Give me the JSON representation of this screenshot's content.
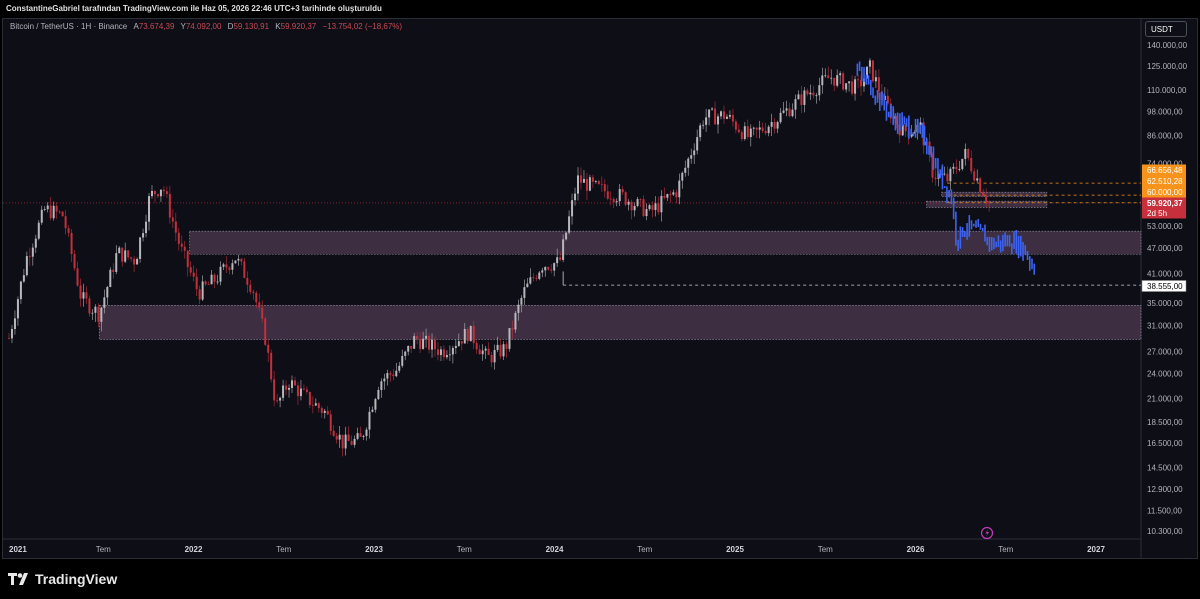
{
  "attribution": "ConstantineGabriel tarafından TradingView.com ile Haz 05, 2026 22:46 UTC+3 tarihinde oluşturuldu",
  "brand": "TradingView",
  "chart_data": {
    "type": "candlestick",
    "symbol": "Bitcoin / TetherUS · 1H · Binance",
    "ohlc": {
      "open_label": "A",
      "open": "73.674,39",
      "high_label": "Y",
      "high": "74.092,00",
      "low_label": "D",
      "low": "59.130,91",
      "close_label": "K",
      "close": "59.920,37",
      "change": "−13.754,02 (−18,67%)"
    },
    "currency": "USDT",
    "y_axis_scale": "log",
    "y_ticks": [
      "140.000,00",
      "125.000,00",
      "110.000,00",
      "98.000,00",
      "86.000,00",
      "74.000,00",
      "53.000,00",
      "47.000,00",
      "41.000,00",
      "35.000,00",
      "31.000,00",
      "27.000,00",
      "24.000,00",
      "21.000,00",
      "18.500,00",
      "16.500,00",
      "14.500,00",
      "12.900,00",
      "11.500,00",
      "10.300,00"
    ],
    "y_tick_values": [
      140000,
      125000,
      110000,
      98000,
      86000,
      74000,
      53000,
      47000,
      41000,
      35000,
      31000,
      27000,
      24000,
      21000,
      18500,
      16500,
      14500,
      12900,
      11500,
      10300
    ],
    "x_ticks": [
      "2021",
      "Tem",
      "2022",
      "Tem",
      "2023",
      "Tem",
      "2024",
      "Tem",
      "2025",
      "Tem",
      "2026",
      "Tem",
      "2027"
    ],
    "price_tags": [
      {
        "label": "66.656,48",
        "value": 66656,
        "color": "#f7931a"
      },
      {
        "label": "62.510,28",
        "value": 62510,
        "color": "#f7931a"
      },
      {
        "label": "60.000,00",
        "value": 60000,
        "color": "#f7931a"
      },
      {
        "label": "59.920,37",
        "value": 59920,
        "color": "#c62f3b"
      },
      {
        "label": "2d 5h",
        "value": 57800,
        "color": "#c62f3b"
      },
      {
        "label": "38.555,00",
        "value": 38555,
        "color": "#ffffff"
      }
    ],
    "zones": [
      {
        "from": 45500,
        "to": 51500,
        "start": "2022-01",
        "end": "2027-05"
      },
      {
        "from": 28800,
        "to": 34600,
        "start": "2021-07",
        "end": "2027-05"
      },
      {
        "from": 62000,
        "to": 63500,
        "start": "2026-03",
        "end": "2026-10"
      },
      {
        "from": 58500,
        "to": 60500,
        "start": "2026-02",
        "end": "2026-10"
      }
    ],
    "path": [
      {
        "t": 2021.0,
        "p": 29000
      },
      {
        "t": 2021.1,
        "p": 45000
      },
      {
        "t": 2021.2,
        "p": 58000
      },
      {
        "t": 2021.3,
        "p": 56000
      },
      {
        "t": 2021.4,
        "p": 36000
      },
      {
        "t": 2021.5,
        "p": 33000
      },
      {
        "t": 2021.6,
        "p": 46000
      },
      {
        "t": 2021.7,
        "p": 44000
      },
      {
        "t": 2021.78,
        "p": 62000
      },
      {
        "t": 2021.85,
        "p": 66000
      },
      {
        "t": 2021.95,
        "p": 47000
      },
      {
        "t": 2022.05,
        "p": 37000
      },
      {
        "t": 2022.15,
        "p": 40000
      },
      {
        "t": 2022.25,
        "p": 45000
      },
      {
        "t": 2022.35,
        "p": 38000
      },
      {
        "t": 2022.42,
        "p": 29000
      },
      {
        "t": 2022.48,
        "p": 20000
      },
      {
        "t": 2022.55,
        "p": 23000
      },
      {
        "t": 2022.65,
        "p": 21000
      },
      {
        "t": 2022.75,
        "p": 19500
      },
      {
        "t": 2022.85,
        "p": 16500
      },
      {
        "t": 2022.95,
        "p": 16800
      },
      {
        "t": 2023.05,
        "p": 23000
      },
      {
        "t": 2023.15,
        "p": 24500
      },
      {
        "t": 2023.25,
        "p": 29000
      },
      {
        "t": 2023.4,
        "p": 27000
      },
      {
        "t": 2023.55,
        "p": 30000
      },
      {
        "t": 2023.65,
        "p": 26000
      },
      {
        "t": 2023.75,
        "p": 27500
      },
      {
        "t": 2023.85,
        "p": 37000
      },
      {
        "t": 2023.95,
        "p": 43000
      },
      {
        "t": 2024.05,
        "p": 43500
      },
      {
        "t": 2024.15,
        "p": 68000
      },
      {
        "t": 2024.25,
        "p": 65000
      },
      {
        "t": 2024.4,
        "p": 62000
      },
      {
        "t": 2024.55,
        "p": 57000
      },
      {
        "t": 2024.7,
        "p": 64000
      },
      {
        "t": 2024.85,
        "p": 95000
      },
      {
        "t": 2024.97,
        "p": 96000
      },
      {
        "t": 2025.1,
        "p": 85000
      },
      {
        "t": 2025.25,
        "p": 94000
      },
      {
        "t": 2025.4,
        "p": 106000
      },
      {
        "t": 2025.55,
        "p": 118000
      },
      {
        "t": 2025.7,
        "p": 111000
      },
      {
        "t": 2025.77,
        "p": 124000
      },
      {
        "t": 2025.85,
        "p": 103000
      },
      {
        "t": 2025.95,
        "p": 88000
      },
      {
        "t": 2026.05,
        "p": 90000
      },
      {
        "t": 2026.12,
        "p": 70000
      },
      {
        "t": 2026.2,
        "p": 68000
      },
      {
        "t": 2026.3,
        "p": 78000
      },
      {
        "t": 2026.38,
        "p": 66000
      },
      {
        "t": 2026.43,
        "p": 59900
      }
    ],
    "projection": [
      {
        "t": 2025.7,
        "p": 122000
      },
      {
        "t": 2025.8,
        "p": 108000
      },
      {
        "t": 2025.9,
        "p": 94000
      },
      {
        "t": 2026.0,
        "p": 90000
      },
      {
        "t": 2026.08,
        "p": 84000
      },
      {
        "t": 2026.15,
        "p": 70000
      },
      {
        "t": 2026.22,
        "p": 62000
      },
      {
        "t": 2026.25,
        "p": 49000
      },
      {
        "t": 2026.3,
        "p": 53000
      },
      {
        "t": 2026.38,
        "p": 51000
      },
      {
        "t": 2026.45,
        "p": 48000
      },
      {
        "t": 2026.55,
        "p": 49000
      },
      {
        "t": 2026.62,
        "p": 47000
      },
      {
        "t": 2026.68,
        "p": 42000
      }
    ]
  }
}
